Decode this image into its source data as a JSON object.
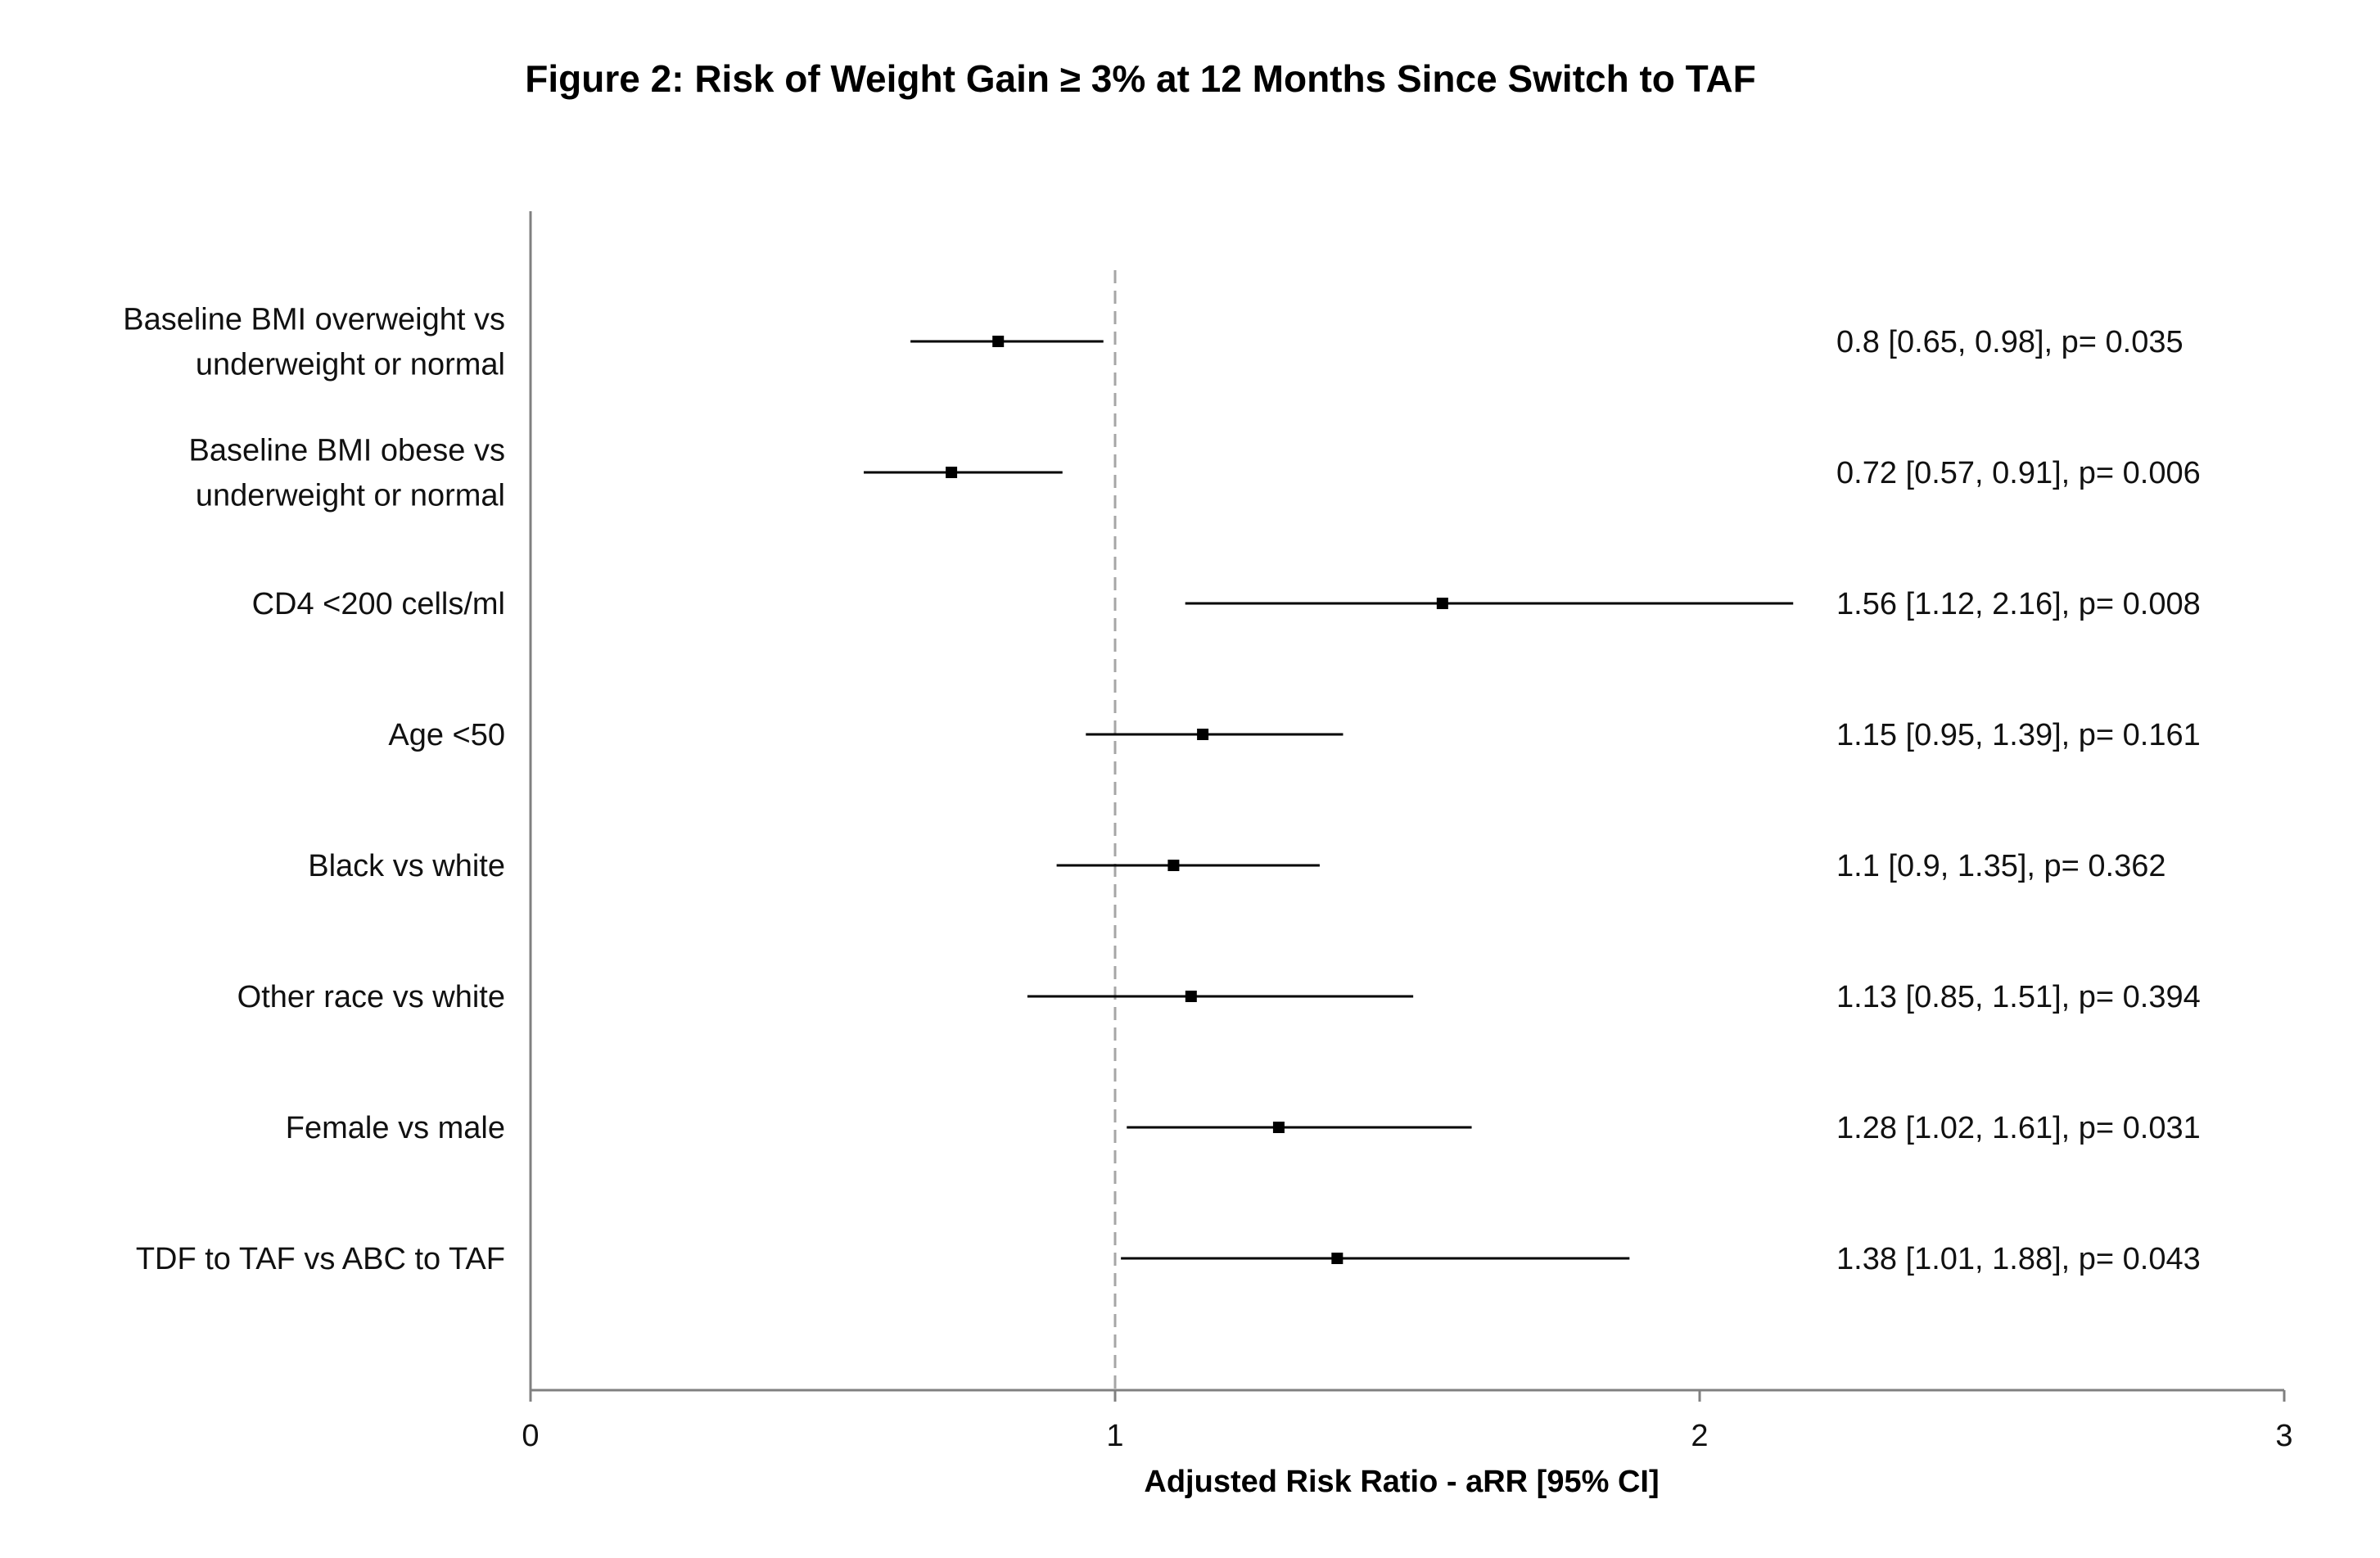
{
  "chart_data": {
    "type": "forest",
    "title": "Figure 2: Risk of Weight Gain ≥ 3% at 12 Months Since Switch to TAF",
    "xlabel": "Adjusted Risk Ratio - aRR [95% CI]",
    "xlim": [
      0,
      3
    ],
    "xticks": [
      "0",
      "1",
      "2",
      "3"
    ],
    "reference_line": 1,
    "rows": [
      {
        "label": [
          "Baseline BMI overweight vs",
          "underweight or normal"
        ],
        "estimate": 0.8,
        "lower": 0.65,
        "upper": 0.98,
        "annotation": "0.8 [0.65, 0.98], p= 0.035"
      },
      {
        "label": [
          "Baseline BMI obese vs",
          "underweight or normal"
        ],
        "estimate": 0.72,
        "lower": 0.57,
        "upper": 0.91,
        "annotation": "0.72 [0.57, 0.91], p= 0.006"
      },
      {
        "label": [
          "CD4 <200 cells/ml"
        ],
        "estimate": 1.56,
        "lower": 1.12,
        "upper": 2.16,
        "annotation": "1.56 [1.12, 2.16], p= 0.008"
      },
      {
        "label": [
          "Age <50"
        ],
        "estimate": 1.15,
        "lower": 0.95,
        "upper": 1.39,
        "annotation": "1.15 [0.95, 1.39], p= 0.161"
      },
      {
        "label": [
          "Black vs white"
        ],
        "estimate": 1.1,
        "lower": 0.9,
        "upper": 1.35,
        "annotation": "1.1 [0.9, 1.35], p= 0.362"
      },
      {
        "label": [
          "Other race vs white"
        ],
        "estimate": 1.13,
        "lower": 0.85,
        "upper": 1.51,
        "annotation": "1.13 [0.85, 1.51], p= 0.394"
      },
      {
        "label": [
          "Female vs male"
        ],
        "estimate": 1.28,
        "lower": 1.02,
        "upper": 1.61,
        "annotation": "1.28 [1.02, 1.61], p= 0.031"
      },
      {
        "label": [
          "TDF to TAF vs ABC to TAF"
        ],
        "estimate": 1.38,
        "lower": 1.01,
        "upper": 1.88,
        "annotation": "1.38 [1.01, 1.88], p= 0.043"
      }
    ],
    "colors": {
      "marker": "#000000",
      "ci_line": "#000000",
      "axis": "#808080",
      "reference": "#a6a6a6"
    }
  }
}
